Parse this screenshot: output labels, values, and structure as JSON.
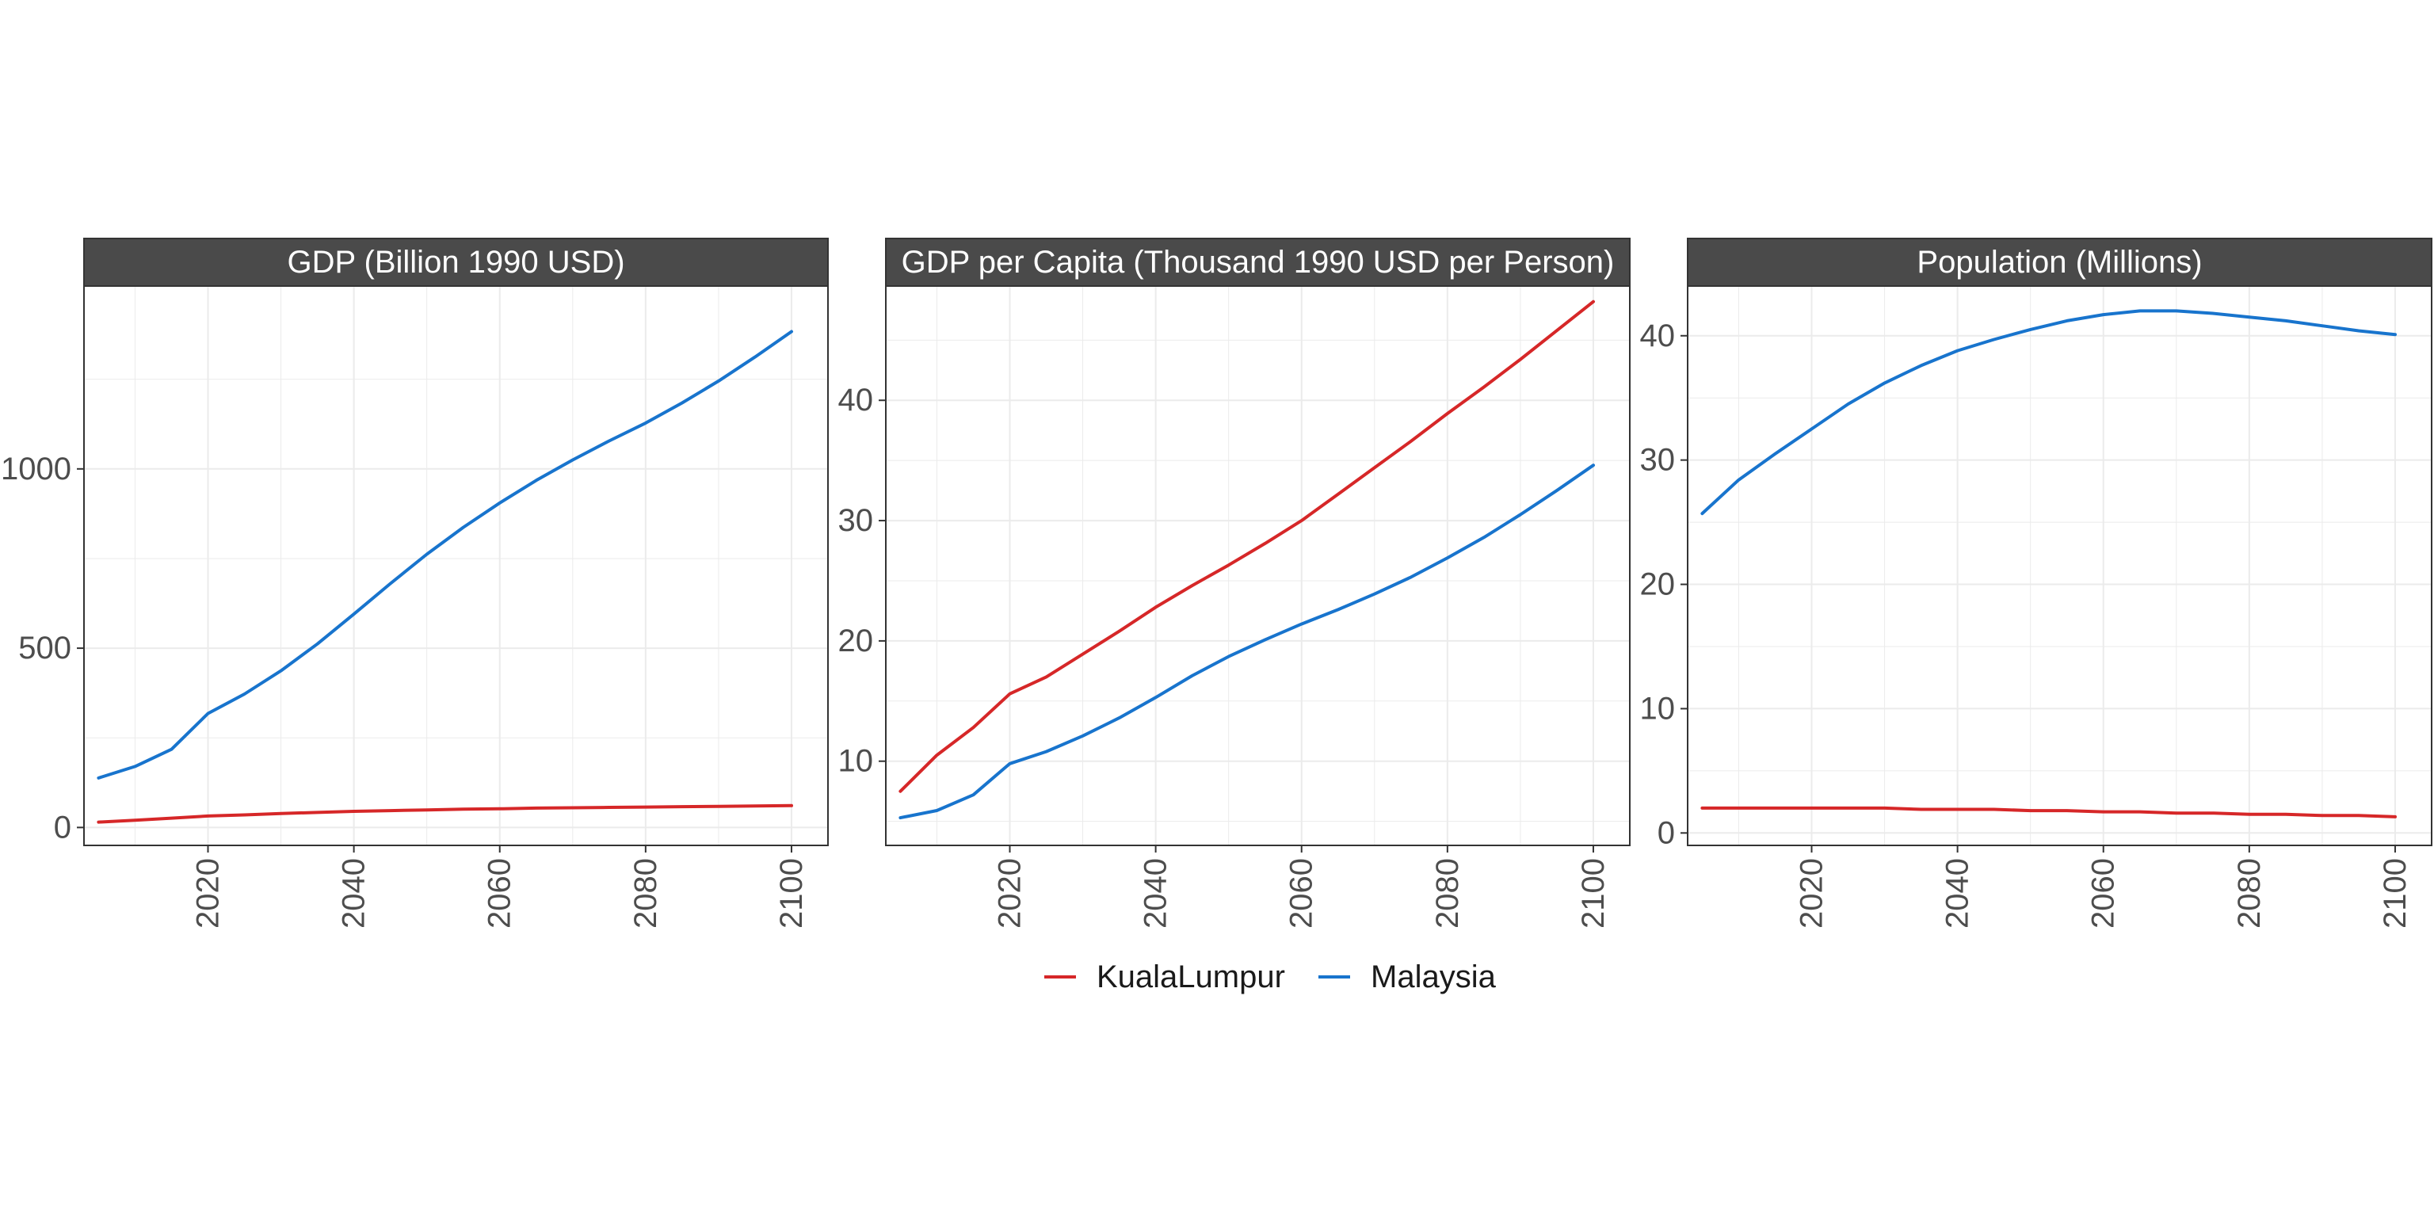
{
  "colors": {
    "KualaLumpur": "#d62728",
    "Malaysia": "#1874cd",
    "strip_background": "#4a4a4a",
    "grid": "#ebebeb",
    "panel_border": "#333333"
  },
  "legend": {
    "items": [
      {
        "label": "KualaLumpur",
        "color": "#d62728"
      },
      {
        "label": "Malaysia",
        "color": "#1874cd"
      }
    ]
  },
  "chart_data": [
    {
      "type": "line",
      "title": "GDP (Billion 1990 USD)",
      "xlim": [
        2003,
        2105
      ],
      "ylim": [
        -50,
        1510
      ],
      "xticks": [
        2020,
        2040,
        2060,
        2080,
        2100
      ],
      "xtick_labels": [
        "2020",
        "2040",
        "2060",
        "2080",
        "2100"
      ],
      "yticks": [
        0,
        500,
        1000
      ],
      "ytick_labels": [
        "0",
        "500",
        "1000"
      ],
      "x": [
        2005,
        2010,
        2015,
        2020,
        2025,
        2030,
        2035,
        2040,
        2045,
        2050,
        2055,
        2060,
        2065,
        2070,
        2075,
        2080,
        2085,
        2090,
        2095,
        2100
      ],
      "series": [
        {
          "name": "KualaLumpur",
          "values": [
            15,
            20,
            26,
            32,
            35,
            39,
            42,
            45,
            47,
            49,
            51,
            52,
            54,
            55,
            56,
            57,
            58,
            59,
            60,
            61
          ]
        },
        {
          "name": "Malaysia",
          "values": [
            138,
            170,
            218,
            318,
            372,
            437,
            512,
            595,
            680,
            762,
            837,
            905,
            968,
            1025,
            1078,
            1128,
            1184,
            1245,
            1312,
            1383
          ]
        }
      ]
    },
    {
      "type": "line",
      "title": "GDP per Capita (Thousand 1990 USD per Person)",
      "xlim": [
        2003,
        2105
      ],
      "ylim": [
        3,
        49.5
      ],
      "xticks": [
        2020,
        2040,
        2060,
        2080,
        2100
      ],
      "xtick_labels": [
        "2020",
        "2040",
        "2060",
        "2080",
        "2100"
      ],
      "yticks": [
        10,
        20,
        30,
        40
      ],
      "ytick_labels": [
        "10",
        "20",
        "30",
        "40"
      ],
      "x": [
        2005,
        2010,
        2015,
        2020,
        2025,
        2030,
        2035,
        2040,
        2045,
        2050,
        2055,
        2060,
        2065,
        2070,
        2075,
        2080,
        2085,
        2090,
        2095,
        2100
      ],
      "series": [
        {
          "name": "KualaLumpur",
          "values": [
            7.5,
            10.5,
            12.8,
            15.6,
            17.0,
            18.9,
            20.8,
            22.8,
            24.6,
            26.3,
            28.1,
            30.0,
            32.2,
            34.4,
            36.6,
            38.9,
            41.1,
            43.4,
            45.8,
            48.2
          ]
        },
        {
          "name": "Malaysia",
          "values": [
            5.3,
            5.9,
            7.2,
            9.8,
            10.8,
            12.1,
            13.6,
            15.3,
            17.1,
            18.7,
            20.1,
            21.4,
            22.6,
            23.9,
            25.3,
            26.9,
            28.6,
            30.5,
            32.5,
            34.6
          ]
        }
      ]
    },
    {
      "type": "line",
      "title": "Population (Millions)",
      "xlim": [
        2003,
        2105
      ],
      "ylim": [
        -1,
        44
      ],
      "xticks": [
        2020,
        2040,
        2060,
        2080,
        2100
      ],
      "xtick_labels": [
        "2020",
        "2040",
        "2060",
        "2080",
        "2100"
      ],
      "yticks": [
        0,
        10,
        20,
        30,
        40
      ],
      "ytick_labels": [
        "0",
        "10",
        "20",
        "30",
        "40"
      ],
      "x": [
        2005,
        2010,
        2015,
        2020,
        2025,
        2030,
        2035,
        2040,
        2045,
        2050,
        2055,
        2060,
        2065,
        2070,
        2075,
        2080,
        2085,
        2090,
        2095,
        2100
      ],
      "series": [
        {
          "name": "KualaLumpur",
          "values": [
            2.0,
            2.0,
            2.0,
            2.0,
            2.0,
            2.0,
            1.9,
            1.9,
            1.9,
            1.8,
            1.8,
            1.7,
            1.7,
            1.6,
            1.6,
            1.5,
            1.5,
            1.4,
            1.4,
            1.3
          ]
        },
        {
          "name": "Malaysia",
          "values": [
            25.7,
            28.4,
            30.5,
            32.5,
            34.5,
            36.2,
            37.6,
            38.8,
            39.7,
            40.5,
            41.2,
            41.7,
            42.0,
            42.0,
            41.8,
            41.5,
            41.2,
            40.8,
            40.4,
            40.1
          ]
        }
      ]
    }
  ]
}
